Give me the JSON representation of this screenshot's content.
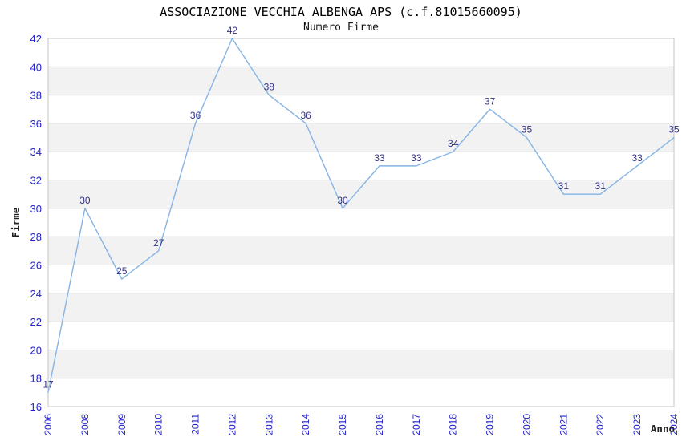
{
  "chart_data": {
    "type": "line",
    "title": "ASSOCIAZIONE VECCHIA ALBENGA APS (c.f.81015660095)",
    "subtitle": "Numero Firme",
    "xlabel": "Anno",
    "ylabel": "Firme",
    "categories": [
      "2006",
      "2008",
      "2009",
      "2010",
      "2011",
      "2012",
      "2013",
      "2014",
      "2015",
      "2016",
      "2017",
      "2018",
      "2019",
      "2020",
      "2021",
      "2022",
      "2023",
      "2024"
    ],
    "values": [
      17,
      30,
      25,
      27,
      36,
      42,
      38,
      36,
      30,
      33,
      33,
      34,
      37,
      35,
      31,
      31,
      33,
      35
    ],
    "ylim": [
      16,
      42
    ],
    "ytick_step": 2,
    "xtick_rotation": -90,
    "grid": "horizontal-alternating-bands",
    "legend": "none",
    "data_labels_shown": true,
    "colors": {
      "line": "#85b4e4",
      "data_label": "#333388",
      "tick_label": "#2323cc",
      "axis_title": "#222222",
      "title": "#000000",
      "band_gray": "#f2f2f2",
      "band_white": "#ffffff",
      "grid_line": "#e0e0e0",
      "plot_border": "#c4c4c4",
      "background": "#ffffff"
    }
  }
}
